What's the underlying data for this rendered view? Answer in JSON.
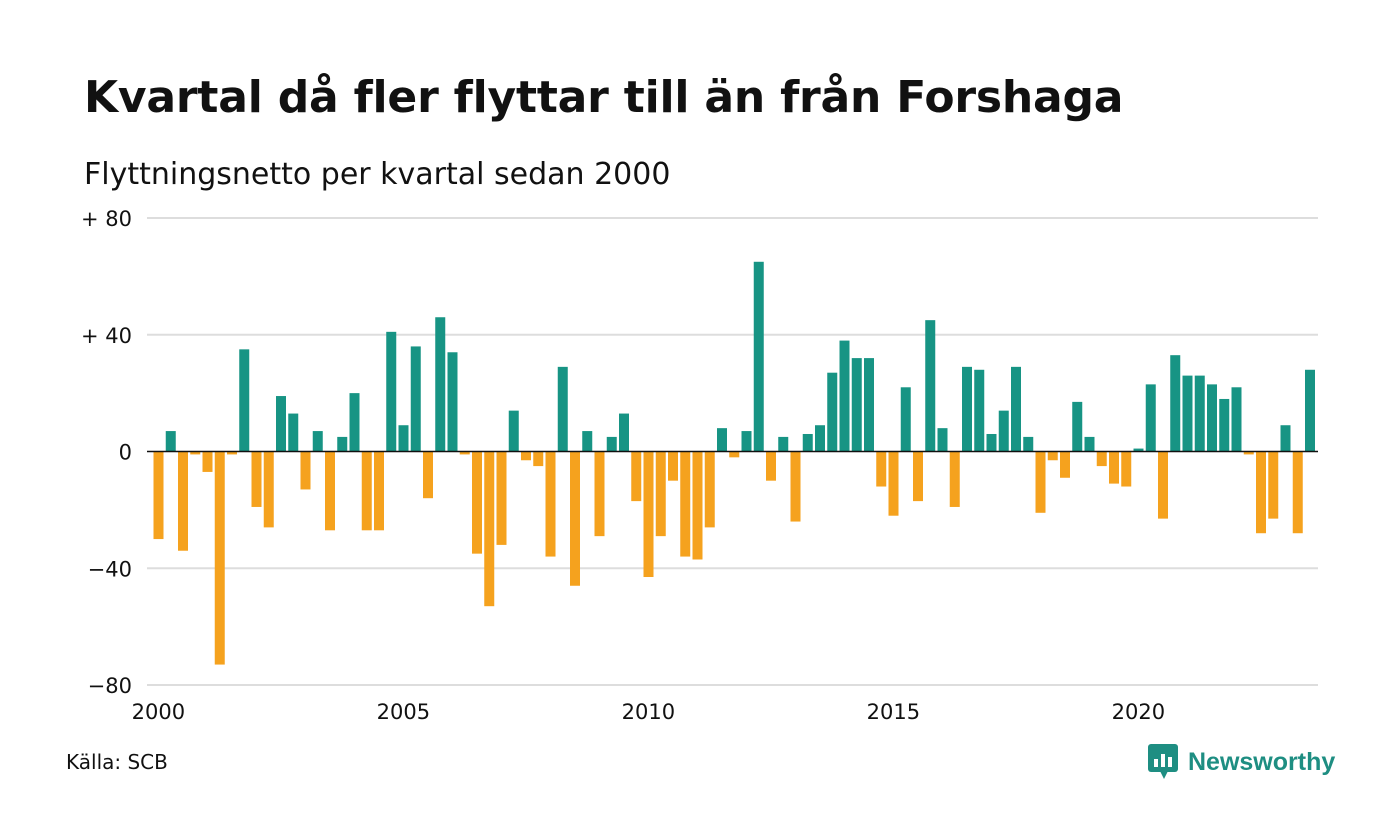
{
  "title": "Kvartal då fler flyttar till än från Forshaga",
  "subtitle": "Flyttningsnetto per kvartal sedan 2000",
  "source": "Källa: SCB",
  "brand": "Newsworthy",
  "brand_icon": "newsworthy-logo-icon",
  "colors": {
    "positive": "#179484",
    "negative": "#f5a21e",
    "grid": "#dddddd",
    "zero_line": "#111111",
    "brand": "#1e8e82"
  },
  "chart_data": {
    "type": "bar",
    "title": "Kvartal då fler flyttar till än från Forshaga",
    "subtitle": "Flyttningsnetto per kvartal sedan 2000",
    "ylim": [
      -80,
      80
    ],
    "grid": true,
    "y_ticks": [
      {
        "value": 80,
        "label": "+ 80"
      },
      {
        "value": 40,
        "label": "+ 40"
      },
      {
        "value": 0,
        "label": "0"
      },
      {
        "value": -40,
        "label": "−40"
      },
      {
        "value": -80,
        "label": "−80"
      }
    ],
    "x_ticks": [
      "2000",
      "2005",
      "2010",
      "2015",
      "2020"
    ],
    "start_year": 2000,
    "values": [
      -30,
      7,
      -34,
      -1,
      -7,
      -73,
      -1,
      35,
      -19,
      -26,
      19,
      13,
      -13,
      7,
      -27,
      5,
      20,
      -27,
      -27,
      41,
      9,
      36,
      -16,
      46,
      34,
      -1,
      -35,
      -53,
      -32,
      14,
      -3,
      -5,
      -36,
      29,
      -46,
      7,
      -29,
      5,
      13,
      -17,
      -43,
      -29,
      -10,
      -36,
      -37,
      -26,
      8,
      -2,
      7,
      65,
      -10,
      5,
      -24,
      6,
      9,
      27,
      38,
      32,
      32,
      -12,
      -22,
      22,
      -17,
      45,
      8,
      -19,
      29,
      28,
      6,
      14,
      29,
      5,
      -21,
      -3,
      -9,
      17,
      5,
      -5,
      -11,
      -12,
      1,
      23,
      -23,
      33,
      26,
      26,
      23,
      18,
      22,
      -1,
      -28,
      -23,
      9,
      -28,
      28
    ]
  }
}
